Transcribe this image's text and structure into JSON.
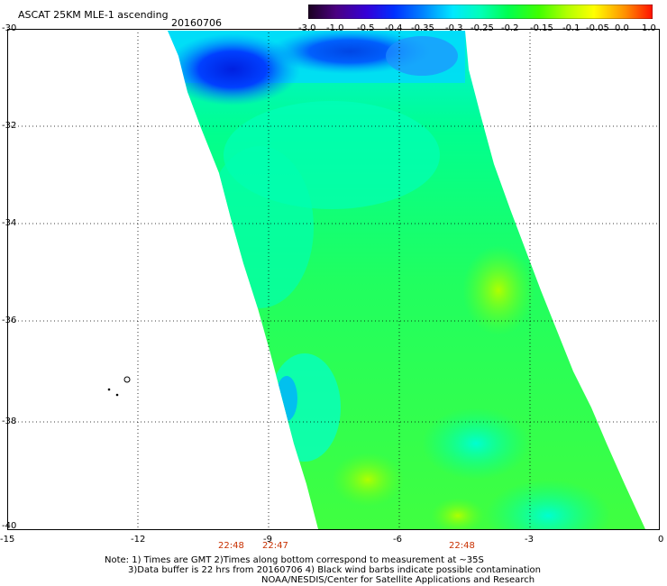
{
  "title": "ASCAT 25KM MLE-1 ascending",
  "date": "20160706",
  "colorbar": {
    "labels": [
      "-3.0",
      "-1.0",
      "-0.5",
      "-0.4",
      "-0.35",
      "-0.3",
      "-0.25",
      "-0.2",
      "-0.15",
      "-0.1",
      "-0.05",
      "0.0",
      "1.0"
    ],
    "colors": [
      "#2a0030",
      "#5a00a0",
      "#3000e0",
      "#0050ff",
      "#00a0ff",
      "#00f0ff",
      "#00ffb0",
      "#00ff40",
      "#60ff00",
      "#d0ff00",
      "#ffd000",
      "#ff6000",
      "#ff2000"
    ]
  },
  "axes": {
    "lat_labels": [
      "-30",
      "-32",
      "-34",
      "-36",
      "-38",
      "-40"
    ],
    "lon_labels": [
      "-15",
      "-12",
      "-9",
      "-6",
      "-3",
      "0"
    ],
    "times": [
      "22:48",
      "22:47",
      "22:48"
    ]
  },
  "notes": {
    "line1": "Note: 1) Times are GMT 2)Times along bottom correspond to measurement at ~35S",
    "line2": "3)Data buffer is 22 hrs from 20160706 4) Black wind barbs indicate possible contamination",
    "line3": "NOAA/NESDIS/Center for Satellite Applications and Research"
  }
}
